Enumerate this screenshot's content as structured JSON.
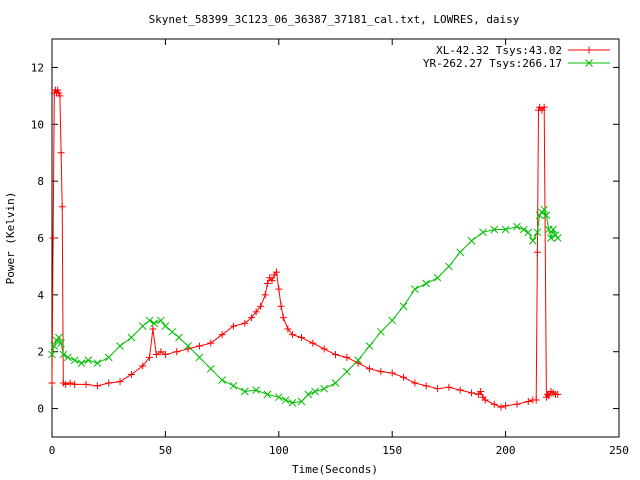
{
  "chart_data": {
    "type": "line",
    "title": "Skynet_58399_3C123_06_36387_37181_cal.txt, LOWRES, daisy",
    "xlabel": "Time(Seconds)",
    "ylabel": "Power (Kelvin)",
    "xlim": [
      0,
      250
    ],
    "ylim": [
      -1,
      13
    ],
    "xticks": [
      0,
      50,
      100,
      150,
      200,
      250
    ],
    "yticks": [
      0,
      2,
      4,
      6,
      8,
      10,
      12
    ],
    "grid": false,
    "legend_position": "top-right",
    "series": [
      {
        "name": "XL-42.32 Tsys:43.02",
        "color": "#ff0000",
        "marker": "+",
        "x": [
          0,
          0.5,
          1,
          1.5,
          2,
          2.5,
          3,
          3.5,
          4,
          4.5,
          5,
          6,
          8,
          10,
          15,
          20,
          25,
          30,
          35,
          40,
          43,
          44.5,
          46,
          48,
          50,
          55,
          60,
          65,
          70,
          75,
          80,
          85,
          88,
          90,
          92,
          94,
          95,
          96,
          97,
          98,
          99,
          100,
          101,
          102,
          104,
          106,
          110,
          115,
          120,
          125,
          130,
          135,
          140,
          145,
          150,
          155,
          160,
          165,
          170,
          175,
          180,
          185,
          188,
          189,
          190,
          191,
          195,
          198,
          200,
          205,
          210,
          212,
          213.5,
          214,
          214.5,
          215,
          216,
          217,
          218,
          218.5,
          219,
          220,
          221,
          222,
          223
        ],
        "y": [
          0.9,
          6.0,
          11.1,
          11.2,
          11.1,
          11.2,
          11.1,
          11.0,
          9.0,
          7.1,
          0.9,
          0.85,
          0.9,
          0.85,
          0.85,
          0.8,
          0.9,
          0.95,
          1.2,
          1.5,
          1.8,
          2.8,
          1.9,
          2.0,
          1.9,
          2.0,
          2.1,
          2.2,
          2.3,
          2.6,
          2.9,
          3.0,
          3.2,
          3.4,
          3.6,
          4.0,
          4.4,
          4.6,
          4.5,
          4.7,
          4.8,
          4.2,
          3.6,
          3.2,
          2.8,
          2.6,
          2.5,
          2.3,
          2.1,
          1.9,
          1.8,
          1.6,
          1.4,
          1.3,
          1.25,
          1.1,
          0.9,
          0.8,
          0.7,
          0.75,
          0.65,
          0.55,
          0.5,
          0.6,
          0.4,
          0.3,
          0.15,
          0.05,
          0.1,
          0.15,
          0.25,
          0.3,
          0.3,
          5.5,
          10.5,
          10.6,
          10.5,
          10.6,
          0.4,
          0.5,
          0.45,
          0.6,
          0.55,
          0.5,
          0.5
        ]
      },
      {
        "name": "YR-262.27 Tsys:266.17",
        "color": "#00c000",
        "marker": "x",
        "x": [
          0,
          1,
          2,
          3,
          4,
          5,
          7,
          10,
          13,
          16,
          20,
          25,
          30,
          35,
          40,
          43,
          45,
          48,
          50,
          53,
          56,
          60,
          65,
          70,
          75,
          80,
          85,
          90,
          95,
          100,
          103,
          106,
          110,
          113,
          116,
          120,
          125,
          130,
          135,
          140,
          145,
          150,
          155,
          160,
          165,
          170,
          175,
          180,
          185,
          190,
          195,
          200,
          205,
          208,
          210,
          212,
          214,
          215,
          216,
          217,
          218,
          219,
          220,
          221,
          222,
          223
        ],
        "y": [
          1.9,
          2.2,
          2.4,
          2.5,
          2.3,
          1.9,
          1.8,
          1.7,
          1.6,
          1.7,
          1.6,
          1.8,
          2.2,
          2.5,
          2.9,
          3.1,
          3.0,
          3.1,
          2.9,
          2.7,
          2.5,
          2.2,
          1.8,
          1.4,
          1.0,
          0.8,
          0.6,
          0.65,
          0.5,
          0.4,
          0.3,
          0.2,
          0.25,
          0.5,
          0.6,
          0.7,
          0.9,
          1.3,
          1.7,
          2.2,
          2.7,
          3.1,
          3.6,
          4.2,
          4.4,
          4.6,
          5.0,
          5.5,
          5.9,
          6.2,
          6.3,
          6.3,
          6.4,
          6.3,
          6.2,
          5.9,
          6.2,
          6.8,
          6.9,
          7.0,
          6.8,
          6.3,
          6.0,
          6.3,
          6.1,
          6.0
        ]
      }
    ]
  }
}
